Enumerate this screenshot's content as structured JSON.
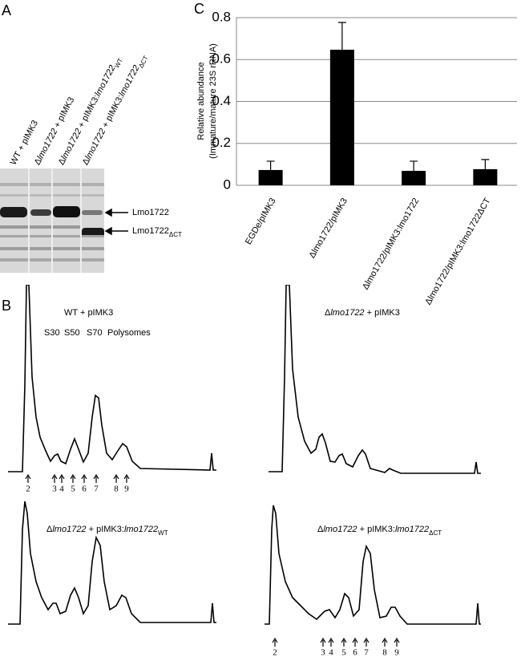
{
  "panel_labels": [
    "A",
    "B",
    "C"
  ],
  "panel_a": {
    "lanes": [
      [
        "WT + pIMK3"
      ],
      [
        "Δ",
        "lmo1722",
        " + pIMK3"
      ],
      [
        "Δ",
        "lmo1722",
        " + pIMK3:",
        "lmo1722",
        "WT"
      ],
      [
        "Δ",
        "lmo1722",
        " + pIMK3:",
        "lmo1722",
        "ΔCT"
      ]
    ],
    "bands": [
      [
        "Lmo1722"
      ],
      [
        "Lmo1722",
        "ΔCT"
      ]
    ]
  },
  "panel_b": {
    "profiles": [
      [
        "WT + pIMK3"
      ],
      [
        "Δ",
        "lmo1722",
        " + pIMK3"
      ],
      [
        "Δ",
        "lmo1722",
        " + pIMK3:",
        "lmo1722",
        "WT"
      ],
      [
        "Δ",
        "lmo1722",
        " + pIMK3:",
        "lmo1722",
        "ΔCT"
      ]
    ],
    "peaks": [
      "S30",
      "S50",
      "S70",
      "Polysomes"
    ],
    "fractions": [
      "2",
      "3",
      "4",
      "5",
      "6",
      "7",
      "8",
      "9"
    ]
  },
  "chart_data": {
    "type": "bar",
    "ylabel": [
      "Relative abundance",
      "(Immature/mature 23S rRNA)"
    ],
    "categories": [
      "EGDe/pIMK3",
      "Δlmo1722/pIMK3",
      "Δlmo1722/pIMK3:lmo1722",
      "Δlmo1722/pIMK3:lmo1722ΔCT"
    ],
    "values": [
      0.073,
      0.647,
      0.069,
      0.077
    ],
    "errors": [
      0.042,
      0.13,
      0.046,
      0.046
    ],
    "color": "#000000",
    "ylim": [
      0,
      0.8
    ],
    "yticks": [
      0,
      0.2,
      0.4,
      0.6,
      0.8
    ],
    "grid": true
  }
}
